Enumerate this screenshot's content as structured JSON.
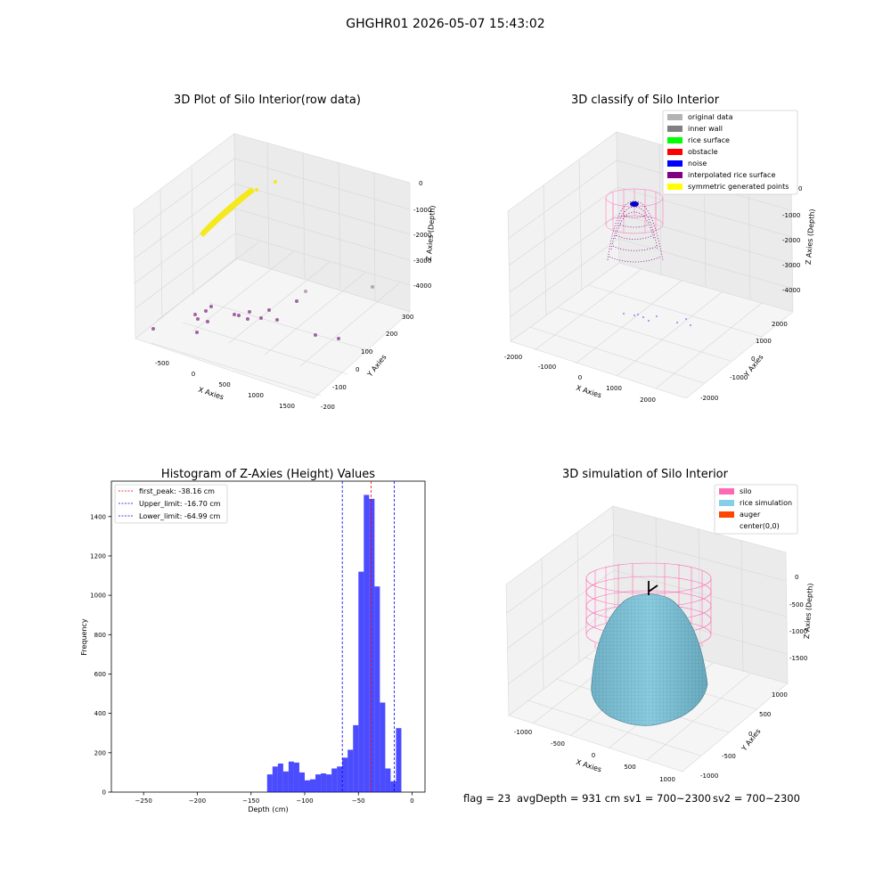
{
  "figure": {
    "suptitle": "GHGHR01 2026-05-07 15:43:02",
    "footer": {
      "flag": "flag = 23",
      "avg_depth": "avgDepth = 931 cm",
      "sv1": "sv1 = 700~2300",
      "sv2": "sv2 = 700~2300"
    }
  },
  "chart_data": [
    {
      "type": "scatter",
      "title": "3D Plot of Silo Interior(row data)",
      "xlabel": "X Axies",
      "ylabel": "Y Axies",
      "zlabel": "Z Axies (Depth)",
      "x_ticks": [
        "-500",
        "0",
        "500",
        "1000",
        "1500"
      ],
      "y_ticks": [
        "-200",
        "-100",
        "0",
        "100",
        "200",
        "300"
      ],
      "z_ticks": [
        "0",
        "-1000",
        "-2000",
        "-3000",
        "-4000"
      ],
      "series": [
        {
          "color": "#f5e81c",
          "description": "dense cluster of points near the top of the silo"
        },
        {
          "color": "#8a3f8f",
          "description": "scattered points near the bottom"
        }
      ]
    },
    {
      "type": "scatter",
      "title": "3D classify of Silo Interior",
      "xlabel": "X Axies",
      "ylabel": "Y Axies",
      "zlabel": "Z Axies (Depth)",
      "x_ticks": [
        "-2000",
        "-1000",
        "0",
        "1000",
        "2000"
      ],
      "y_ticks": [
        "-2000",
        "-1000",
        "0",
        "1000",
        "2000"
      ],
      "z_ticks": [
        "0",
        "-1000",
        "-2000",
        "-3000",
        "-4000"
      ],
      "legend_position": "top-right",
      "series": [
        {
          "name": "original data",
          "color": "#b3b3b3"
        },
        {
          "name": "inner wall",
          "color": "#808080"
        },
        {
          "name": "rice surface",
          "color": "#00ff00"
        },
        {
          "name": "obstacle",
          "color": "#ff0000"
        },
        {
          "name": "noise",
          "color": "#0000ff"
        },
        {
          "name": "interpolated rice surface",
          "color": "#800080"
        },
        {
          "name": "symmetric generated points",
          "color": "#ffff00"
        }
      ]
    },
    {
      "type": "bar",
      "title": "Histogram of Z-Axies (Height) Values",
      "xlabel": "Depth (cm)",
      "ylabel": "Frequency",
      "xlim": [
        -280,
        12
      ],
      "ylim": [
        0,
        1580
      ],
      "x_ticks": [
        -250,
        -200,
        -150,
        -100,
        -50,
        0
      ],
      "y_ticks": [
        0,
        200,
        400,
        600,
        800,
        1000,
        1200,
        1400
      ],
      "bar_color": "#0000ff",
      "bin_width": 5,
      "bins": [
        [
          -135,
          90
        ],
        [
          -130,
          130
        ],
        [
          -125,
          145
        ],
        [
          -120,
          105
        ],
        [
          -115,
          155
        ],
        [
          -110,
          150
        ],
        [
          -105,
          100
        ],
        [
          -100,
          60
        ],
        [
          -95,
          65
        ],
        [
          -90,
          90
        ],
        [
          -85,
          95
        ],
        [
          -80,
          90
        ],
        [
          -75,
          120
        ],
        [
          -70,
          130
        ],
        [
          -65,
          175
        ],
        [
          -60,
          215
        ],
        [
          -55,
          340
        ],
        [
          -50,
          1120
        ],
        [
          -45,
          1510
        ],
        [
          -40,
          1490
        ],
        [
          -35,
          1045
        ],
        [
          -30,
          455
        ],
        [
          -25,
          120
        ],
        [
          -20,
          55
        ],
        [
          -15,
          325
        ]
      ],
      "vlines": [
        {
          "label": "first_peak: -38.16 cm",
          "value": -38.16,
          "color": "#ff0000"
        },
        {
          "label": "Upper_limit: -16.70 cm",
          "value": -16.7,
          "color": "#0000ff"
        },
        {
          "label": "Lower_limit: -64.99 cm",
          "value": -64.99,
          "color": "#0000ff"
        }
      ],
      "legend_position": "top-left"
    },
    {
      "type": "surface",
      "title": "3D simulation of Silo Interior",
      "xlabel": "X Axies",
      "ylabel": "Y Axies",
      "zlabel": "Z Axies (Depth)",
      "x_ticks": [
        "-1000",
        "-500",
        "0",
        "500",
        "1000"
      ],
      "y_ticks": [
        "-1000",
        "-500",
        "0",
        "500",
        "1000"
      ],
      "z_ticks": [
        "0",
        "-500",
        "-1000",
        "-1500"
      ],
      "legend_position": "top-right",
      "series": [
        {
          "name": "silo",
          "color": "#ff69b4"
        },
        {
          "name": "rice simulation",
          "color": "#87ceeb"
        },
        {
          "name": "auger",
          "color": "#ff4500"
        },
        {
          "name": "center(0,0)",
          "color": "#000000"
        }
      ]
    }
  ]
}
